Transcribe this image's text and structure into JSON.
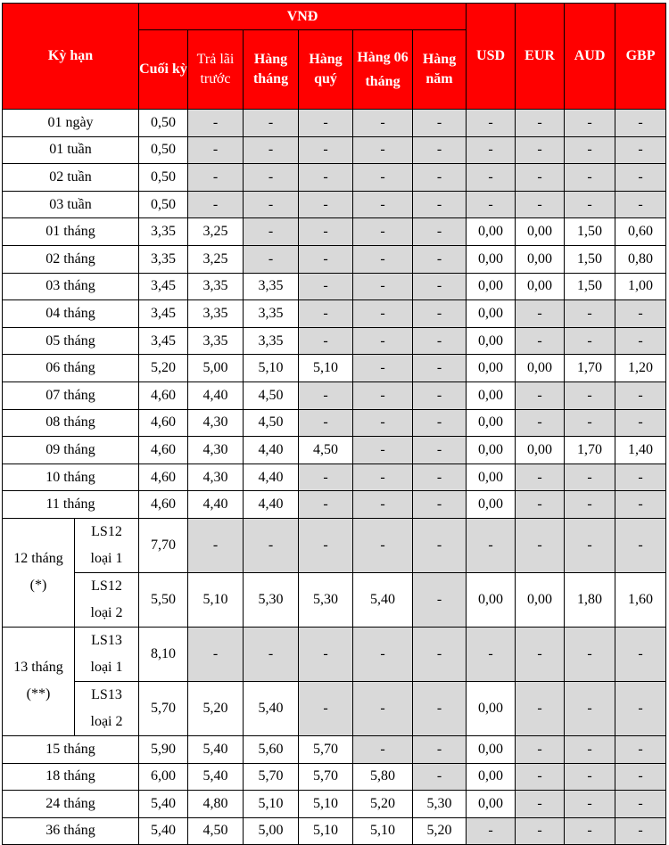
{
  "header": {
    "term": "Kỳ hạn",
    "vnd_group": "VNĐ",
    "vnd_cols": [
      "Cuối kỳ",
      "Trả lãi trước",
      "Hàng tháng",
      "Hàng quý",
      "Hàng 06 tháng",
      "Hàng năm"
    ],
    "fx_cols": [
      "USD",
      "EUR",
      "AUD",
      "GBP"
    ]
  },
  "colors": {
    "header_bg": "#ff0000",
    "header_text": "#ffffff",
    "na_cell_bg": "#d9d9d9"
  },
  "rows_top": [
    {
      "term": "01 ngày",
      "v": [
        "0,50",
        "-",
        "-",
        "-",
        "-",
        "-",
        "-",
        "-",
        "-",
        "-"
      ]
    },
    {
      "term": "01 tuần",
      "v": [
        "0,50",
        "-",
        "-",
        "-",
        "-",
        "-",
        "-",
        "-",
        "-",
        "-"
      ]
    },
    {
      "term": "02 tuần",
      "v": [
        "0,50",
        "-",
        "-",
        "-",
        "-",
        "-",
        "-",
        "-",
        "-",
        "-"
      ]
    },
    {
      "term": "03 tuần",
      "v": [
        "0,50",
        "-",
        "-",
        "-",
        "-",
        "-",
        "-",
        "-",
        "-",
        "-"
      ]
    },
    {
      "term": "01 tháng",
      "v": [
        "3,35",
        "3,25",
        "-",
        "-",
        "-",
        "-",
        "0,00",
        "0,00",
        "1,50",
        "0,60"
      ]
    },
    {
      "term": "02 tháng",
      "v": [
        "3,35",
        "3,25",
        "-",
        "-",
        "-",
        "-",
        "0,00",
        "0,00",
        "1,50",
        "0,80"
      ]
    },
    {
      "term": "03 tháng",
      "v": [
        "3,45",
        "3,35",
        "3,35",
        "-",
        "-",
        "-",
        "0,00",
        "0,00",
        "1,50",
        "1,00"
      ]
    },
    {
      "term": "04 tháng",
      "v": [
        "3,45",
        "3,35",
        "3,35",
        "-",
        "-",
        "-",
        "0,00",
        "-",
        "-",
        "-"
      ]
    },
    {
      "term": "05 tháng",
      "v": [
        "3,45",
        "3,35",
        "3,35",
        "-",
        "-",
        "-",
        "0,00",
        "-",
        "-",
        "-"
      ]
    },
    {
      "term": "06 tháng",
      "v": [
        "5,20",
        "5,00",
        "5,10",
        "5,10",
        "-",
        "-",
        "0,00",
        "0,00",
        "1,70",
        "1,20"
      ]
    },
    {
      "term": "07 tháng",
      "v": [
        "4,60",
        "4,40",
        "4,50",
        "-",
        "-",
        "-",
        "0,00",
        "-",
        "-",
        "-"
      ]
    },
    {
      "term": "08 tháng",
      "v": [
        "4,60",
        "4,30",
        "4,50",
        "-",
        "-",
        "-",
        "0,00",
        "-",
        "-",
        "-"
      ]
    },
    {
      "term": "09 tháng",
      "v": [
        "4,60",
        "4,30",
        "4,40",
        "4,50",
        "-",
        "-",
        "0,00",
        "0,00",
        "1,70",
        "1,40"
      ]
    },
    {
      "term": "10 tháng",
      "v": [
        "4,60",
        "4,30",
        "4,40",
        "-",
        "-",
        "-",
        "0,00",
        "-",
        "-",
        "-"
      ]
    },
    {
      "term": "11 tháng",
      "v": [
        "4,60",
        "4,40",
        "4,40",
        "-",
        "-",
        "-",
        "0,00",
        "-",
        "-",
        "-"
      ]
    }
  ],
  "split_rows": [
    {
      "term": "12 tháng",
      "note": "(*)",
      "subs": [
        {
          "name": "LS12",
          "type": "loại 1",
          "v": [
            "7,70",
            "-",
            "-",
            "-",
            "-",
            "-",
            "-",
            "-",
            "-",
            "-"
          ]
        },
        {
          "name": "LS12",
          "type": "loại 2",
          "v": [
            "5,50",
            "5,10",
            "5,30",
            "5,30",
            "5,40",
            "-",
            "0,00",
            "0,00",
            "1,80",
            "1,60"
          ]
        }
      ]
    },
    {
      "term": "13 tháng",
      "note": "(**)",
      "subs": [
        {
          "name": "LS13",
          "type": "loại 1",
          "v": [
            "8,10",
            "-",
            "-",
            "-",
            "-",
            "-",
            "-",
            "-",
            "-",
            "-"
          ]
        },
        {
          "name": "LS13",
          "type": "loại 2",
          "v": [
            "5,70",
            "5,20",
            "5,40",
            "-",
            "-",
            "-",
            "0,00",
            "-",
            "-",
            "-"
          ]
        }
      ]
    }
  ],
  "rows_bottom": [
    {
      "term": "15 tháng",
      "v": [
        "5,90",
        "5,40",
        "5,60",
        "5,70",
        "-",
        "-",
        "0,00",
        "-",
        "-",
        "-"
      ]
    },
    {
      "term": "18 tháng",
      "v": [
        "6,00",
        "5,40",
        "5,70",
        "5,70",
        "5,80",
        "-",
        "0,00",
        "-",
        "-",
        "-"
      ]
    },
    {
      "term": "24 tháng",
      "v": [
        "5,40",
        "4,80",
        "5,10",
        "5,10",
        "5,20",
        "5,30",
        "0,00",
        "-",
        "-",
        "-"
      ]
    },
    {
      "term": "36 tháng",
      "v": [
        "5,40",
        "4,50",
        "5,00",
        "5,10",
        "5,10",
        "5,20",
        "-",
        "-",
        "-",
        "-"
      ]
    }
  ]
}
